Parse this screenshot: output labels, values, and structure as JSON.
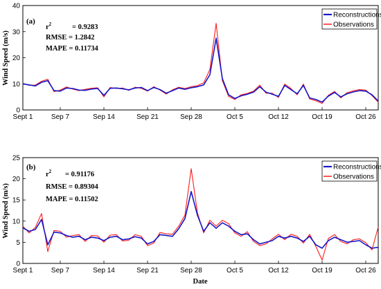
{
  "colors": {
    "reconstruction": "#1515c8",
    "observation": "#ff1a1a"
  },
  "chart_data": [
    {
      "type": "line",
      "panel_label": "(a)",
      "ylabel": "Wind Speed (m/s)",
      "xlabel": "",
      "ylim": [
        0,
        40
      ],
      "yticks": [
        0,
        10,
        20,
        30,
        40
      ],
      "xlim": [
        "2018-09-01",
        "2018-10-28"
      ],
      "xtick_labels": [
        "Sept 1",
        "Sep 7",
        "Sep 14",
        "Sep 21",
        "Sep 28",
        "Oct 5",
        "Oct 12",
        "Oct 19",
        "Oct 26"
      ],
      "xtick_dates": [
        "2018-09-01",
        "2018-09-07",
        "2018-09-14",
        "2018-09-21",
        "2018-09-28",
        "2018-10-05",
        "2018-10-12",
        "2018-10-19",
        "2018-10-26"
      ],
      "stats": [
        {
          "label": "r",
          "sup": "2",
          "value": "= 0.9283"
        },
        {
          "label": "RMSE",
          "sup": "",
          "value": "= 1.2842"
        },
        {
          "label": "MAPE",
          "sup": "",
          "value": "= 0.11734"
        }
      ],
      "legend_position": "top-right",
      "series": [
        {
          "name": "Reconstructions",
          "x": [
            "2018-09-01",
            "2018-09-02",
            "2018-09-03",
            "2018-09-04",
            "2018-09-05",
            "2018-09-06",
            "2018-09-07",
            "2018-09-08",
            "2018-09-09",
            "2018-09-10",
            "2018-09-11",
            "2018-09-12",
            "2018-09-13",
            "2018-09-14",
            "2018-09-15",
            "2018-09-16",
            "2018-09-17",
            "2018-09-18",
            "2018-09-19",
            "2018-09-20",
            "2018-09-21",
            "2018-09-22",
            "2018-09-23",
            "2018-09-24",
            "2018-09-25",
            "2018-09-26",
            "2018-09-27",
            "2018-09-28",
            "2018-09-29",
            "2018-09-30",
            "2018-10-01",
            "2018-10-02",
            "2018-10-03",
            "2018-10-04",
            "2018-10-05",
            "2018-10-06",
            "2018-10-07",
            "2018-10-08",
            "2018-10-09",
            "2018-10-10",
            "2018-10-11",
            "2018-10-12",
            "2018-10-13",
            "2018-10-14",
            "2018-10-15",
            "2018-10-16",
            "2018-10-17",
            "2018-10-18",
            "2018-10-19",
            "2018-10-20",
            "2018-10-21",
            "2018-10-22",
            "2018-10-23",
            "2018-10-24",
            "2018-10-25",
            "2018-10-26",
            "2018-10-27",
            "2018-10-28"
          ],
          "values": [
            10,
            9.6,
            9.2,
            10.6,
            11.2,
            7.4,
            7.2,
            8.4,
            8.2,
            7.6,
            7.5,
            8.0,
            8.2,
            5.6,
            8.3,
            8.4,
            8.1,
            7.7,
            8.4,
            8.6,
            7.4,
            8.6,
            7.8,
            6.4,
            7.4,
            8.4,
            7.9,
            8.5,
            8.9,
            9.6,
            13.5,
            27.5,
            12.0,
            5.8,
            4.4,
            5.4,
            6.0,
            6.8,
            8.9,
            6.8,
            6.0,
            5.2,
            9.4,
            7.8,
            6.2,
            9.4,
            4.6,
            4.0,
            3.0,
            5.3,
            6.7,
            5.0,
            6.2,
            6.9,
            7.4,
            7.2,
            5.8,
            3.4
          ]
        },
        {
          "name": "Observations",
          "x": [
            "2018-09-01",
            "2018-09-02",
            "2018-09-03",
            "2018-09-04",
            "2018-09-05",
            "2018-09-06",
            "2018-09-07",
            "2018-09-08",
            "2018-09-09",
            "2018-09-10",
            "2018-09-11",
            "2018-09-12",
            "2018-09-13",
            "2018-09-14",
            "2018-09-15",
            "2018-09-16",
            "2018-09-17",
            "2018-09-18",
            "2018-09-19",
            "2018-09-20",
            "2018-09-21",
            "2018-09-22",
            "2018-09-23",
            "2018-09-24",
            "2018-09-25",
            "2018-09-26",
            "2018-09-27",
            "2018-09-28",
            "2018-09-29",
            "2018-09-30",
            "2018-10-01",
            "2018-10-02",
            "2018-10-03",
            "2018-10-04",
            "2018-10-05",
            "2018-10-06",
            "2018-10-07",
            "2018-10-08",
            "2018-10-09",
            "2018-10-10",
            "2018-10-11",
            "2018-10-12",
            "2018-10-13",
            "2018-10-14",
            "2018-10-15",
            "2018-10-16",
            "2018-10-17",
            "2018-10-18",
            "2018-10-19",
            "2018-10-20",
            "2018-10-21",
            "2018-10-22",
            "2018-10-23",
            "2018-10-24",
            "2018-10-25",
            "2018-10-26",
            "2018-10-27",
            "2018-10-28"
          ],
          "values": [
            10.2,
            9.4,
            9.5,
            11.0,
            11.8,
            7.0,
            7.6,
            8.8,
            8.0,
            7.4,
            7.9,
            8.3,
            8.5,
            5.0,
            8.6,
            8.2,
            8.4,
            7.5,
            8.7,
            8.3,
            7.2,
            8.9,
            7.6,
            6.1,
            7.7,
            8.7,
            8.2,
            8.9,
            9.3,
            10.4,
            15.5,
            33.2,
            11.2,
            5.2,
            4.0,
            5.8,
            6.3,
            7.2,
            9.5,
            6.4,
            6.4,
            4.8,
            9.9,
            8.2,
            5.8,
            9.9,
            4.2,
            3.5,
            2.5,
            5.6,
            7.1,
            4.6,
            6.6,
            7.3,
            7.8,
            7.6,
            5.5,
            3.0
          ]
        }
      ]
    },
    {
      "type": "line",
      "panel_label": "(b)",
      "ylabel": "Wind Speed (m/s)",
      "xlabel": "Date",
      "ylim": [
        0,
        25
      ],
      "yticks": [
        0,
        5,
        10,
        15,
        20,
        25
      ],
      "xlim": [
        "2018-09-01",
        "2018-10-28"
      ],
      "xtick_labels": [
        "Sept 1",
        "Sep 7",
        "Sep 14",
        "Sep 21",
        "Sep 28",
        "Oct 5",
        "Oct 12",
        "Oct 19",
        "Oct 26"
      ],
      "xtick_dates": [
        "2018-09-01",
        "2018-09-07",
        "2018-09-14",
        "2018-09-21",
        "2018-09-28",
        "2018-10-05",
        "2018-10-12",
        "2018-10-19",
        "2018-10-26"
      ],
      "stats": [
        {
          "label": "r",
          "sup": "2",
          "value": "= 0.91176"
        },
        {
          "label": "RMSE",
          "sup": "",
          "value": "= 0.89304"
        },
        {
          "label": "MAPE",
          "sup": "",
          "value": "= 0.11502"
        }
      ],
      "legend_position": "top-right",
      "series": [
        {
          "name": "Reconstructions",
          "x": [
            "2018-09-01",
            "2018-09-02",
            "2018-09-03",
            "2018-09-04",
            "2018-09-05",
            "2018-09-06",
            "2018-09-07",
            "2018-09-08",
            "2018-09-09",
            "2018-09-10",
            "2018-09-11",
            "2018-09-12",
            "2018-09-13",
            "2018-09-14",
            "2018-09-15",
            "2018-09-16",
            "2018-09-17",
            "2018-09-18",
            "2018-09-19",
            "2018-09-20",
            "2018-09-21",
            "2018-09-22",
            "2018-09-23",
            "2018-09-24",
            "2018-09-25",
            "2018-09-26",
            "2018-09-27",
            "2018-09-28",
            "2018-09-29",
            "2018-09-30",
            "2018-10-01",
            "2018-10-02",
            "2018-10-03",
            "2018-10-04",
            "2018-10-05",
            "2018-10-06",
            "2018-10-07",
            "2018-10-08",
            "2018-10-09",
            "2018-10-10",
            "2018-10-11",
            "2018-10-12",
            "2018-10-13",
            "2018-10-14",
            "2018-10-15",
            "2018-10-16",
            "2018-10-17",
            "2018-10-18",
            "2018-10-19",
            "2018-10-20",
            "2018-10-21",
            "2018-10-22",
            "2018-10-23",
            "2018-10-24",
            "2018-10-25",
            "2018-10-26",
            "2018-10-27",
            "2018-10-28"
          ],
          "values": [
            8.4,
            7.6,
            8.0,
            10.4,
            4.4,
            7.4,
            7.2,
            6.6,
            6.2,
            6.4,
            5.6,
            6.2,
            6.0,
            5.4,
            6.2,
            6.4,
            5.6,
            5.8,
            6.3,
            6.0,
            4.6,
            5.2,
            6.8,
            6.6,
            6.4,
            8.2,
            10.6,
            17.0,
            11.4,
            7.6,
            9.6,
            8.3,
            9.6,
            8.8,
            7.6,
            6.8,
            7.0,
            5.6,
            4.6,
            5.0,
            5.4,
            6.4,
            6.0,
            6.4,
            6.0,
            5.2,
            6.4,
            4.4,
            3.6,
            5.4,
            6.2,
            5.6,
            5.0,
            5.2,
            5.4,
            4.4,
            3.6,
            3.8
          ]
        },
        {
          "name": "Observations",
          "x": [
            "2018-09-01",
            "2018-09-02",
            "2018-09-03",
            "2018-09-04",
            "2018-09-05",
            "2018-09-06",
            "2018-09-07",
            "2018-09-08",
            "2018-09-09",
            "2018-09-10",
            "2018-09-11",
            "2018-09-12",
            "2018-09-13",
            "2018-09-14",
            "2018-09-15",
            "2018-09-16",
            "2018-09-17",
            "2018-09-18",
            "2018-09-19",
            "2018-09-20",
            "2018-09-21",
            "2018-09-22",
            "2018-09-23",
            "2018-09-24",
            "2018-09-25",
            "2018-09-26",
            "2018-09-27",
            "2018-09-28",
            "2018-09-29",
            "2018-09-30",
            "2018-10-01",
            "2018-10-02",
            "2018-10-03",
            "2018-10-04",
            "2018-10-05",
            "2018-10-06",
            "2018-10-07",
            "2018-10-08",
            "2018-10-09",
            "2018-10-10",
            "2018-10-11",
            "2018-10-12",
            "2018-10-13",
            "2018-10-14",
            "2018-10-15",
            "2018-10-16",
            "2018-10-17",
            "2018-10-18",
            "2018-10-19",
            "2018-10-20",
            "2018-10-21",
            "2018-10-22",
            "2018-10-23",
            "2018-10-24",
            "2018-10-25",
            "2018-10-26",
            "2018-10-27",
            "2018-10-28"
          ],
          "values": [
            8.8,
            7.2,
            8.5,
            11.8,
            2.8,
            7.8,
            7.6,
            6.2,
            6.6,
            6.8,
            5.2,
            6.6,
            6.5,
            5.0,
            6.7,
            6.8,
            5.3,
            5.5,
            6.8,
            6.4,
            4.2,
            4.8,
            7.3,
            7.0,
            6.9,
            8.8,
            11.4,
            22.4,
            12.0,
            7.2,
            10.2,
            8.8,
            10.2,
            9.4,
            7.2,
            6.4,
            7.5,
            5.2,
            4.2,
            4.6,
            5.8,
            6.9,
            5.6,
            6.9,
            6.4,
            4.8,
            6.9,
            4.0,
            0.8,
            5.9,
            6.8,
            5.2,
            4.6,
            5.6,
            5.8,
            4.9,
            3.2,
            8.6
          ]
        }
      ]
    }
  ]
}
